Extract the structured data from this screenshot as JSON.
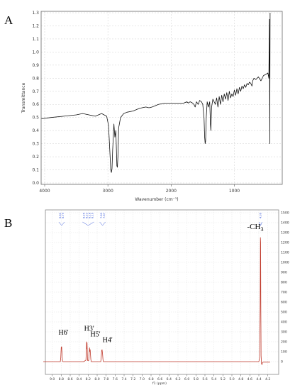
{
  "chart_data": [
    {
      "panel_label": "A",
      "type": "line",
      "title": "",
      "xlabel": "Wavenumber (cm⁻¹)",
      "ylabel": "Transmittance",
      "xlim": [
        4000,
        400
      ],
      "ylim": [
        0,
        1.3
      ],
      "grid": true,
      "x_ticks": [
        "4000",
        "3000",
        "2000",
        "1000"
      ],
      "y_ticks": [
        "0.0",
        "0.1",
        "0.2",
        "0.3",
        "0.4",
        "0.5",
        "0.6",
        "0.7",
        "0.8",
        "0.9",
        "1.0",
        "1.1",
        "1.2",
        "1.3"
      ],
      "series": [
        {
          "color": "#111111",
          "x": [
            4050,
            3900,
            3700,
            3500,
            3400,
            3300,
            3200,
            3100,
            3020,
            2990,
            2965,
            2955,
            2945,
            2935,
            2925,
            2905,
            2890,
            2875,
            2865,
            2858,
            2850,
            2842,
            2830,
            2800,
            2750,
            2700,
            2600,
            2500,
            2400,
            2360,
            2340,
            2300,
            2200,
            2100,
            2000,
            1900,
            1800,
            1750,
            1730,
            1700,
            1660,
            1640,
            1620,
            1600,
            1570,
            1550,
            1520,
            1500,
            1480,
            1470,
            1462,
            1455,
            1445,
            1430,
            1410,
            1390,
            1378,
            1372,
            1360,
            1340,
            1320,
            1300,
            1280,
            1260,
            1240,
            1220,
            1200,
            1180,
            1160,
            1140,
            1120,
            1100,
            1080,
            1060,
            1040,
            1020,
            1000,
            980,
            960,
            940,
            920,
            900,
            880,
            860,
            840,
            820,
            800,
            780,
            760,
            740,
            722,
            710,
            690,
            660,
            620,
            580,
            540,
            500,
            470,
            455,
            445,
            440,
            435
          ],
          "y": [
            0.49,
            0.5,
            0.51,
            0.52,
            0.53,
            0.52,
            0.51,
            0.53,
            0.51,
            0.44,
            0.2,
            0.1,
            0.08,
            0.11,
            0.25,
            0.45,
            0.35,
            0.4,
            0.25,
            0.13,
            0.12,
            0.2,
            0.42,
            0.5,
            0.53,
            0.54,
            0.55,
            0.57,
            0.58,
            0.575,
            0.575,
            0.58,
            0.6,
            0.61,
            0.61,
            0.61,
            0.61,
            0.62,
            0.61,
            0.62,
            0.61,
            0.6,
            0.58,
            0.62,
            0.6,
            0.63,
            0.62,
            0.6,
            0.5,
            0.35,
            0.3,
            0.32,
            0.5,
            0.62,
            0.58,
            0.62,
            0.45,
            0.4,
            0.58,
            0.64,
            0.62,
            0.6,
            0.65,
            0.58,
            0.66,
            0.6,
            0.67,
            0.62,
            0.68,
            0.64,
            0.69,
            0.63,
            0.7,
            0.65,
            0.68,
            0.66,
            0.71,
            0.67,
            0.72,
            0.68,
            0.73,
            0.7,
            0.74,
            0.72,
            0.75,
            0.73,
            0.76,
            0.75,
            0.77,
            0.76,
            0.74,
            0.78,
            0.8,
            0.79,
            0.81,
            0.78,
            0.82,
            0.83,
            0.84,
            0.8,
            1.25,
            0.3,
            1.3
          ]
        }
      ]
    },
    {
      "panel_label": "B",
      "type": "line",
      "title": "",
      "xlabel": "f1 (ppm)",
      "ylabel": "",
      "xlim": [
        9.2,
        4.1
      ],
      "ylim": [
        -100,
        1500
      ],
      "grid": true,
      "x_ticks": [
        "9.0",
        "8.8",
        "8.6",
        "8.4",
        "8.2",
        "8.0",
        "7.8",
        "7.6",
        "7.4",
        "7.2",
        "7.0",
        "6.8",
        "6.6",
        "6.4",
        "6.2",
        "6.0",
        "5.8",
        "5.6",
        "5.4",
        "5.2",
        "5.0",
        "4.8",
        "4.6",
        "4.4",
        "4.2"
      ],
      "y_ticks": [
        "0",
        "100",
        "200",
        "300",
        "400",
        "500",
        "600",
        "700",
        "800",
        "900",
        "1000",
        "1100",
        "1200",
        "1300",
        "1400",
        "1500"
      ],
      "series": [
        {
          "color": "#c0392b",
          "x": [
            9.2,
            8.82,
            8.81,
            8.8,
            8.79,
            8.78,
            8.77,
            8.76,
            8.3,
            8.25,
            8.24,
            8.235,
            8.23,
            8.225,
            8.22,
            8.215,
            8.21,
            8.19,
            8.18,
            8.17,
            8.16,
            8.155,
            8.15,
            8.145,
            8.14,
            8.135,
            8.13,
            8.12,
            7.92,
            7.91,
            7.9,
            7.89,
            7.88,
            7.87,
            7.86,
            7.5,
            6.0,
            5.0,
            4.45,
            4.4,
            4.38,
            4.37,
            4.365,
            4.36,
            4.355,
            4.35,
            4.34,
            4.33,
            4.32,
            4.3,
            4.2,
            4.15
          ],
          "y": [
            0,
            0,
            40,
            145,
            150,
            50,
            5,
            0,
            0,
            15,
            120,
            200,
            130,
            190,
            110,
            30,
            10,
            10,
            60,
            140,
            100,
            120,
            80,
            50,
            20,
            10,
            0,
            0,
            0,
            40,
            110,
            120,
            80,
            20,
            0,
            0,
            0,
            0,
            0,
            0,
            40,
            600,
            1250,
            1200,
            500,
            60,
            -20,
            -30,
            -10,
            -5,
            -5,
            -5
          ]
        }
      ],
      "integrals": [
        {
          "x": 8.79,
          "labels": [
            "8.80",
            "8.79"
          ]
        },
        {
          "x": 8.2,
          "labels": [
            "8.25",
            "8.23",
            "8.18",
            "8.16"
          ]
        },
        {
          "x": 7.88,
          "labels": [
            "7.89",
            "7.87"
          ]
        },
        {
          "x": 4.36,
          "labels": [
            "4.36"
          ]
        }
      ],
      "annotations": [
        {
          "text": "H6'",
          "x": 8.86,
          "y": 270
        },
        {
          "text": "H3'",
          "x": 8.29,
          "y": 310
        },
        {
          "text": "H5'",
          "x": 8.15,
          "y": 255
        },
        {
          "text": "H4'",
          "x": 7.88,
          "y": 195
        },
        {
          "text": "-CH",
          "sub": "3",
          "x": 4.66,
          "y": 1335
        }
      ]
    }
  ]
}
